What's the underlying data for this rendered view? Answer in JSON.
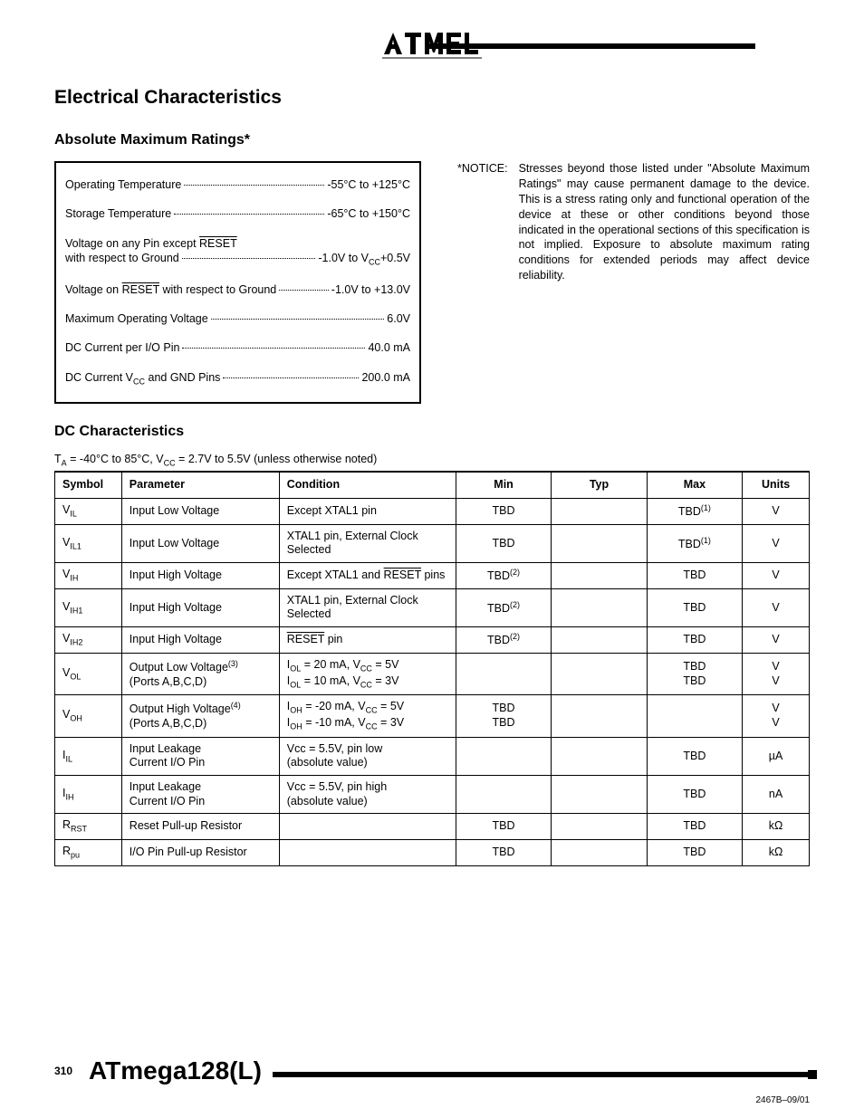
{
  "header": {
    "section_title": "Electrical Characteristics",
    "abs_title": "Absolute Maximum Ratings*"
  },
  "ratings": [
    {
      "label": "Operating Temperature",
      "value": "-55°C to +125°C",
      "multiline": false
    },
    {
      "label": "Storage Temperature",
      "value": "-65°C to +150°C",
      "multiline": false
    },
    {
      "label_html": "Voltage on any Pin except <span class='ov'>RESET</span><br>with respect to Ground",
      "value_html": "-1.0V to V<sub>CC</sub>+0.5V",
      "multiline": true
    },
    {
      "label_html": "Voltage on <span class='ov'>RESET</span> with respect to Ground",
      "value": "-1.0V to +13.0V",
      "multiline": false
    },
    {
      "label": "Maximum Operating Voltage",
      "value": "6.0V",
      "multiline": false
    },
    {
      "label": "DC Current per I/O Pin",
      "value": "40.0 mA",
      "multiline": false
    },
    {
      "label_html": "DC Current V<sub>CC</sub> and GND Pins",
      "value": "200.0 mA",
      "multiline": false
    }
  ],
  "notice": {
    "label": "*NOTICE:",
    "text": "Stresses beyond those listed under \"Absolute Maximum Ratings\" may cause permanent damage to the device. This is a stress rating only and functional operation of the device at these or other conditions beyond those indicated in the operational sections of this specification is not implied. Exposure to absolute maximum rating conditions for extended periods may affect device reliability."
  },
  "dc": {
    "title": "DC Characteristics",
    "caption_html": "T<sub>A</sub> = -40°C to 85°C, V<sub>CC</sub> = 2.7V to 5.5V (unless otherwise noted)",
    "headers": [
      "Symbol",
      "Parameter",
      "Condition",
      "Min",
      "Typ",
      "Max",
      "Units"
    ],
    "rows": [
      {
        "sym": "V<sub>IL</sub>",
        "param": "Input Low Voltage",
        "cond": "Except XTAL1 pin",
        "min": "TBD",
        "typ": "",
        "max": "TBD<sup>(1)</sup>",
        "units": "V"
      },
      {
        "sym": "V<sub>IL1</sub>",
        "param": "Input Low Voltage",
        "cond": "XTAL1 pin, External Clock Selected",
        "min": "TBD",
        "typ": "",
        "max": "TBD<sup>(1)</sup>",
        "units": "V"
      },
      {
        "sym": "V<sub>IH</sub>",
        "param": "Input High Voltage",
        "cond": "Except XTAL1 and <span class='ov'>RESET</span> pins",
        "min": "TBD<sup>(2)</sup>",
        "typ": "",
        "max": "TBD",
        "units": "V"
      },
      {
        "sym": "V<sub>IH1</sub>",
        "param": "Input High Voltage",
        "cond": "XTAL1 pin, External Clock Selected",
        "min": "TBD<sup>(2)</sup>",
        "typ": "",
        "max": "TBD",
        "units": "V"
      },
      {
        "sym": "V<sub>IH2</sub>",
        "param": "Input High Voltage",
        "cond": "<span class='ov'>RESET</span> pin",
        "min": "TBD<sup>(2)</sup>",
        "typ": "",
        "max": "TBD",
        "units": "V"
      },
      {
        "sym": "V<sub>OL</sub>",
        "param": "Output Low Voltage<sup>(3)</sup><br>(Ports A,B,C,D)",
        "cond": "I<sub>OL</sub> = 20 mA, V<sub>CC</sub> = 5V<br>I<sub>OL</sub> = 10 mA, V<sub>CC</sub> = 3V",
        "min": "",
        "typ": "",
        "max": "TBD<br>TBD",
        "units": "V<br>V"
      },
      {
        "sym": "V<sub>OH</sub>",
        "param": "Output High Voltage<sup>(4)</sup><br>(Ports A,B,C,D)",
        "cond": "I<sub>OH</sub> = -20 mA, V<sub>CC</sub> = 5V<br>I<sub>OH</sub> = -10 mA, V<sub>CC</sub> = 3V",
        "min": "TBD<br>TBD",
        "typ": "",
        "max": "",
        "units": "V<br>V"
      },
      {
        "sym": "I<sub>IL</sub>",
        "param": "Input Leakage<br>Current I/O Pin",
        "cond": "Vcc = 5.5V, pin low<br>(absolute value)",
        "min": "",
        "typ": "",
        "max": "TBD",
        "units": "µA"
      },
      {
        "sym": "I<sub>IH</sub>",
        "param": "Input Leakage<br>Current I/O Pin",
        "cond": "Vcc = 5.5V, pin high<br>(absolute value)",
        "min": "",
        "typ": "",
        "max": "TBD",
        "units": "nA"
      },
      {
        "sym": "R<sub>RST</sub>",
        "param": "Reset Pull-up Resistor",
        "cond": "",
        "min": "TBD",
        "typ": "",
        "max": "TBD",
        "units": "kΩ"
      },
      {
        "sym": "R<sub>pu</sub>",
        "param": "I/O Pin Pull-up Resistor",
        "cond": "",
        "min": "TBD",
        "typ": "",
        "max": "TBD",
        "units": "kΩ"
      }
    ]
  },
  "footer": {
    "page_number": "310",
    "part": "ATmega128(L)",
    "docref": "2467B–09/01"
  }
}
